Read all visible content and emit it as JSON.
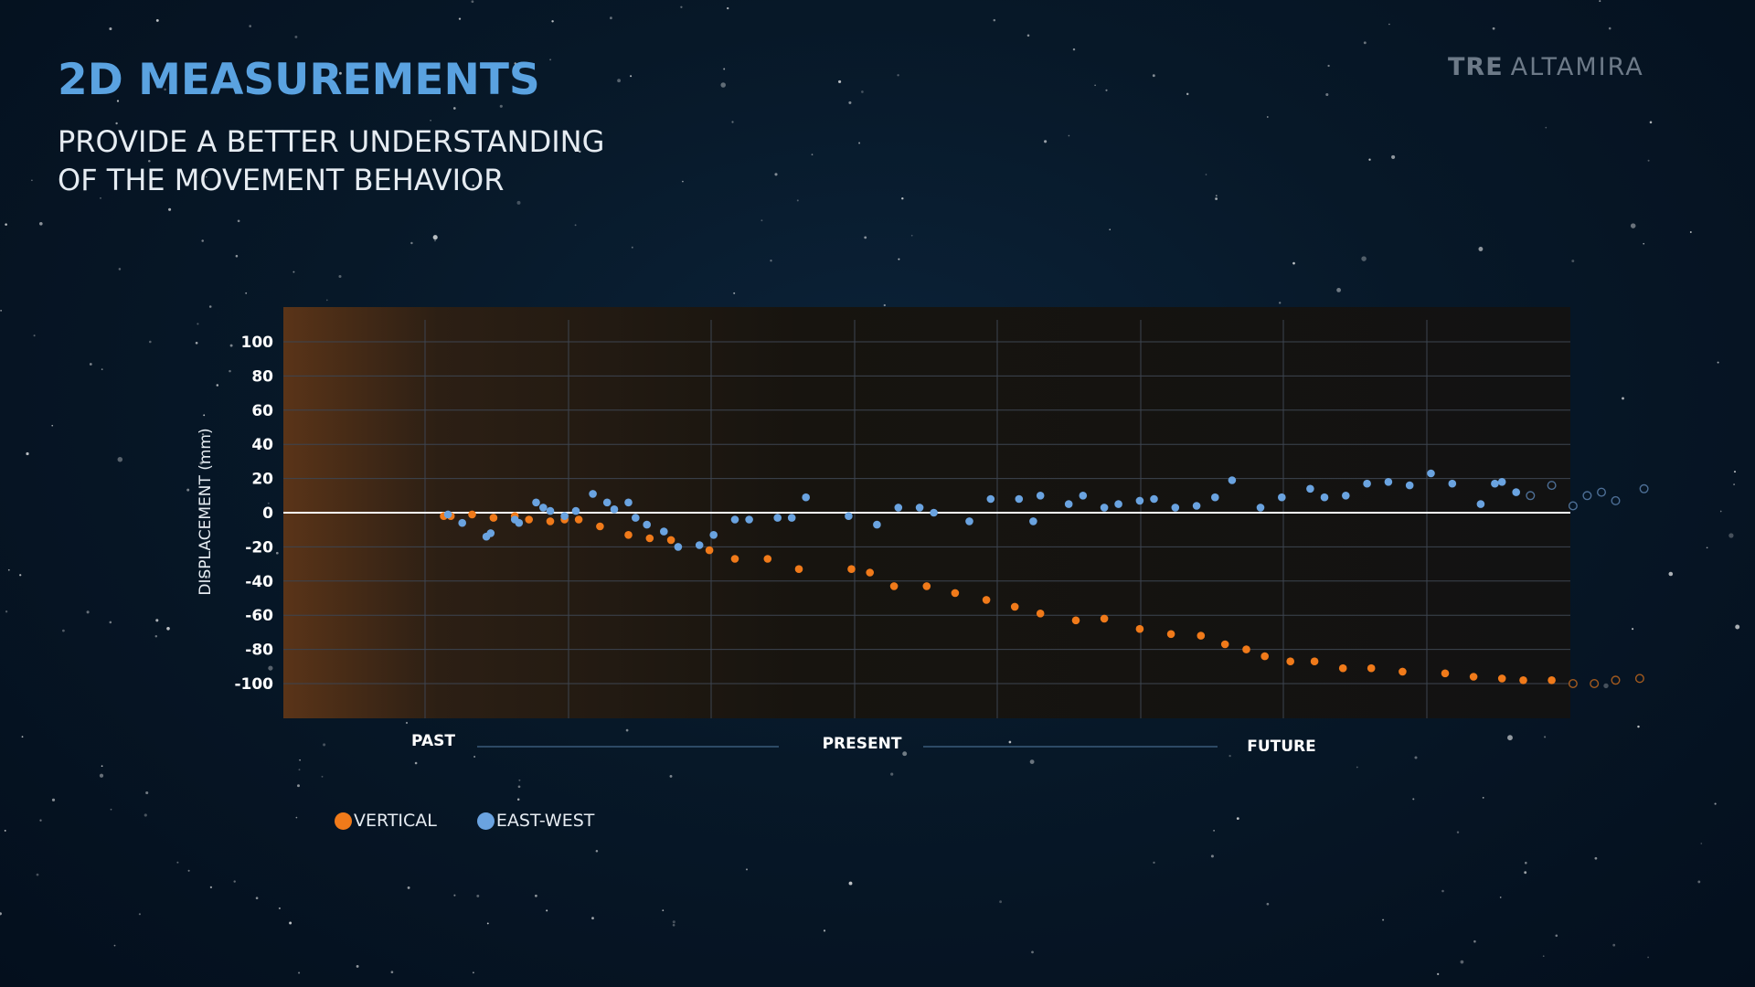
{
  "header": {
    "title": "2D MEASUREMENTS",
    "subtitle_line1": "PROVIDE A BETTER UNDERSTANDING",
    "subtitle_line2": "OF THE MOVEMENT BEHAVIOR"
  },
  "brand": {
    "part1": "TRE",
    "part2": "ALTAMIRA"
  },
  "colors": {
    "title": "#5aa2e0",
    "vertical": "#f07a1a",
    "east_west": "#6aa3e0",
    "future_vertical": "#a35a1e",
    "future_east_west": "#4d6f96"
  },
  "timeline": {
    "past": "PAST",
    "present": "PRESENT",
    "future": "FUTURE"
  },
  "legend": [
    {
      "label": "VERTICAL",
      "color": "#f07a1a"
    },
    {
      "label": "EAST-WEST",
      "color": "#6aa3e0"
    }
  ],
  "chart_data": {
    "type": "scatter",
    "title": "",
    "xlabel": "",
    "ylabel": "DISPLACEMENT (mm)",
    "ylim": [
      -120,
      110
    ],
    "xlim": [
      0,
      9
    ],
    "yticks": [
      "100",
      "80",
      "60",
      "40",
      "20",
      "0",
      "-20",
      "-40",
      "-60",
      "-80",
      "-100"
    ],
    "grid": true,
    "legend_position": "bottom-left",
    "series": [
      {
        "name": "VERTICAL",
        "color": "#f07a1a",
        "x": [
          0.55,
          0.6,
          0.75,
          0.9,
          1.05,
          1.15,
          1.3,
          1.4,
          1.5,
          1.65,
          1.85,
          2.0,
          2.15,
          2.42,
          2.6,
          2.83,
          3.05,
          3.42,
          3.55,
          3.72,
          3.95,
          4.15,
          4.37,
          4.57,
          4.75,
          5.0,
          5.2,
          5.45,
          5.67,
          5.88,
          6.05,
          6.2,
          6.33,
          6.51,
          6.68,
          6.88,
          7.08,
          7.3,
          7.6,
          7.8,
          8.0,
          8.15,
          8.35,
          8.5,
          8.65,
          8.8,
          8.97
        ],
        "y": [
          -2,
          -2,
          -1,
          -3,
          -2,
          -4,
          -5,
          -4,
          -4,
          -8,
          -13,
          -15,
          -16,
          -22,
          -27,
          -27,
          -33,
          -33,
          -35,
          -43,
          -43,
          -47,
          -51,
          -55,
          -59,
          -63,
          -62,
          -68,
          -71,
          -72,
          -77,
          -80,
          -84,
          -87,
          -87,
          -91,
          -91,
          -93,
          -94,
          -96,
          -97,
          -98,
          -98,
          -100,
          -100,
          -98,
          -97
        ],
        "future": [
          false,
          false,
          false,
          false,
          false,
          false,
          false,
          false,
          false,
          false,
          false,
          false,
          false,
          false,
          false,
          false,
          false,
          false,
          false,
          false,
          false,
          false,
          false,
          false,
          false,
          false,
          false,
          false,
          false,
          false,
          false,
          false,
          false,
          false,
          false,
          false,
          false,
          false,
          false,
          false,
          false,
          false,
          false,
          true,
          true,
          true,
          true
        ]
      },
      {
        "name": "EAST-WEST",
        "color": "#6aa3e0",
        "x": [
          0.58,
          0.68,
          0.85,
          0.88,
          1.05,
          1.08,
          1.2,
          1.25,
          1.3,
          1.4,
          1.48,
          1.6,
          1.7,
          1.75,
          1.85,
          1.9,
          1.98,
          2.1,
          2.2,
          2.35,
          2.45,
          2.6,
          2.7,
          2.9,
          3.0,
          3.1,
          3.4,
          3.6,
          3.75,
          3.9,
          4.0,
          4.25,
          4.4,
          4.6,
          4.7,
          4.75,
          4.95,
          5.05,
          5.2,
          5.3,
          5.45,
          5.55,
          5.7,
          5.85,
          5.98,
          6.1,
          6.3,
          6.45,
          6.65,
          6.75,
          6.9,
          7.05,
          7.2,
          7.35,
          7.5,
          7.65,
          7.85,
          7.95,
          8.0,
          8.1,
          8.2,
          8.35,
          8.5,
          8.6,
          8.7,
          8.8,
          9.0
        ],
        "y": [
          -1,
          -6,
          -14,
          -12,
          -4,
          -6,
          6,
          3,
          1,
          -2,
          1,
          11,
          6,
          2,
          6,
          -3,
          -7,
          -11,
          -20,
          -19,
          -13,
          -4,
          -4,
          -3,
          -3,
          9,
          -2,
          -7,
          3,
          3,
          0,
          -5,
          8,
          8,
          -5,
          10,
          5,
          10,
          3,
          5,
          7,
          8,
          3,
          4,
          9,
          19,
          3,
          9,
          14,
          9,
          10,
          17,
          18,
          16,
          23,
          17,
          5,
          17,
          18,
          12,
          10,
          16,
          4,
          10,
          12,
          7,
          14
        ],
        "future": [
          false,
          false,
          false,
          false,
          false,
          false,
          false,
          false,
          false,
          false,
          false,
          false,
          false,
          false,
          false,
          false,
          false,
          false,
          false,
          false,
          false,
          false,
          false,
          false,
          false,
          false,
          false,
          false,
          false,
          false,
          false,
          false,
          false,
          false,
          false,
          false,
          false,
          false,
          false,
          false,
          false,
          false,
          false,
          false,
          false,
          false,
          false,
          false,
          false,
          false,
          false,
          false,
          false,
          false,
          false,
          false,
          false,
          false,
          false,
          false,
          true,
          true,
          true,
          true,
          true,
          true,
          true
        ]
      }
    ]
  }
}
